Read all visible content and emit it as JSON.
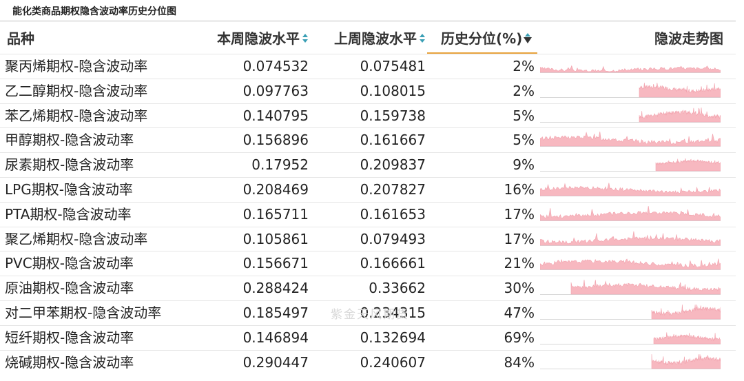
{
  "title": "能化类商品期权隐含波动率历史分位图",
  "watermark": "紫金天风期货",
  "colors": {
    "header_underline": "#e8a33d",
    "sort_icon": "#3a9fb5",
    "spark_fill": "#f7b8c0",
    "spark_stroke": "#f2a2ad"
  },
  "table": {
    "headers": {
      "name": "品种",
      "current": "本周隐波水平",
      "previous": "上周隐波水平",
      "percentile": "历史分位(%)",
      "trend": "隐波走势图"
    },
    "rows": [
      {
        "name": "聚丙烯期权-隐含波动率",
        "current": "0.074532",
        "previous": "0.075481",
        "percentile": "2%",
        "spark": {
          "start": 0.0,
          "base": 0.05,
          "amp": 0.42,
          "seed": 3,
          "trend": -0.5
        }
      },
      {
        "name": "乙二醇期权-隐含波动率",
        "current": "0.097763",
        "previous": "0.108015",
        "percentile": "2%",
        "spark": {
          "start": 0.55,
          "base": 0.35,
          "amp": 0.55,
          "seed": 7,
          "trend": 0.1
        }
      },
      {
        "name": "苯乙烯期权-隐含波动率",
        "current": "0.140795",
        "previous": "0.159738",
        "percentile": "5%",
        "spark": {
          "start": 0.55,
          "base": 0.28,
          "amp": 0.6,
          "seed": 11,
          "trend": -0.1
        }
      },
      {
        "name": "甲醇期权-隐含波动率",
        "current": "0.156896",
        "previous": "0.161667",
        "percentile": "5%",
        "spark": {
          "start": 0.0,
          "base": 0.18,
          "amp": 0.6,
          "seed": 13,
          "trend": -0.3
        }
      },
      {
        "name": "尿素期权-隐含波动率",
        "current": "0.17952",
        "previous": "0.209837",
        "percentile": "9%",
        "spark": {
          "start": 0.64,
          "base": 0.45,
          "amp": 0.35,
          "seed": 17,
          "trend": 0.0
        }
      },
      {
        "name": "LPG期权-隐含波动率",
        "current": "0.208469",
        "previous": "0.207827",
        "percentile": "16%",
        "spark": {
          "start": 0.0,
          "base": 0.2,
          "amp": 0.5,
          "seed": 19,
          "trend": -0.2
        }
      },
      {
        "name": "PTA期权-隐含波动率",
        "current": "0.165711",
        "previous": "0.161653",
        "percentile": "17%",
        "spark": {
          "start": 0.0,
          "base": 0.2,
          "amp": 0.55,
          "seed": 23,
          "trend": -0.3
        }
      },
      {
        "name": "聚乙烯期权-隐含波动率",
        "current": "0.105861",
        "previous": "0.079493",
        "percentile": "17%",
        "spark": {
          "start": 0.0,
          "base": 0.15,
          "amp": 0.55,
          "seed": 29,
          "trend": -0.5
        }
      },
      {
        "name": "PVC期权-隐含波动率",
        "current": "0.156671",
        "previous": "0.166661",
        "percentile": "21%",
        "spark": {
          "start": 0.0,
          "base": 0.2,
          "amp": 0.55,
          "seed": 31,
          "trend": -0.2
        }
      },
      {
        "name": "原油期权-隐含波动率",
        "current": "0.288424",
        "previous": "0.33662",
        "percentile": "30%",
        "spark": {
          "start": 0.17,
          "base": 0.28,
          "amp": 0.55,
          "seed": 37,
          "trend": -0.3
        }
      },
      {
        "name": "对二甲苯期权-隐含波动率",
        "current": "0.185497",
        "previous": "0.234315",
        "percentile": "47%",
        "spark": {
          "start": 0.62,
          "base": 0.3,
          "amp": 0.6,
          "seed": 41,
          "trend": 0.3
        }
      },
      {
        "name": "短纤期权-隐含波动率",
        "current": "0.146894",
        "previous": "0.132694",
        "percentile": "69%",
        "spark": {
          "start": 0.63,
          "base": 0.25,
          "amp": 0.45,
          "seed": 43,
          "trend": 0.1
        }
      },
      {
        "name": "烧碱期权-隐含波动率",
        "current": "0.290447",
        "previous": "0.240607",
        "percentile": "84%",
        "spark": {
          "start": 0.62,
          "base": 0.3,
          "amp": 0.6,
          "seed": 47,
          "trend": 0.1
        }
      }
    ]
  }
}
